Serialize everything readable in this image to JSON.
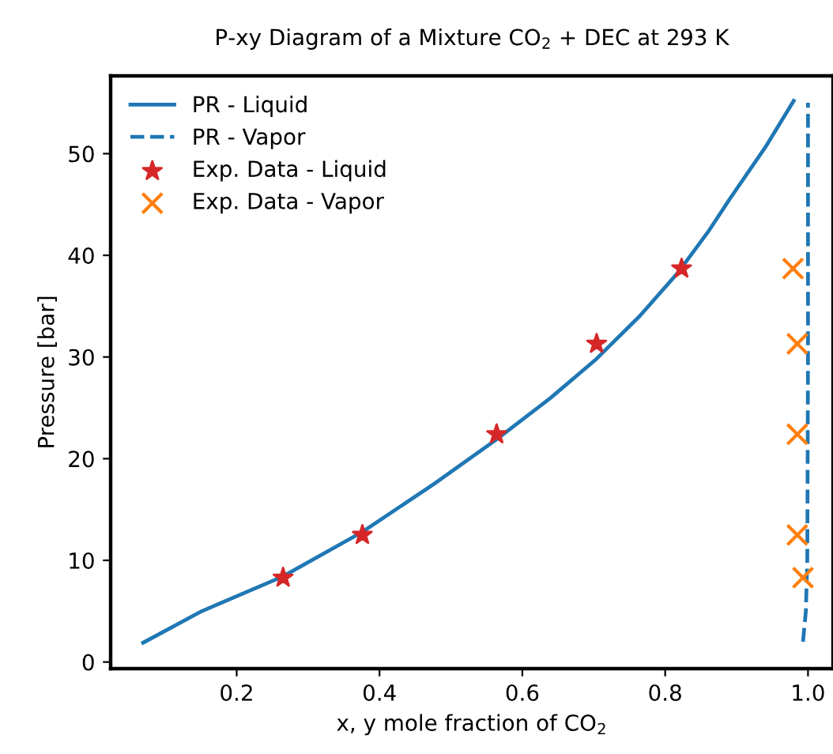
{
  "chart_data": {
    "type": "line",
    "title": "P-xy Diagram of a Mixture CO$_{2}$ + DEC at 293 K",
    "xlabel": "x, y mole fraction of CO$_{2}$",
    "ylabel": "Pressure [bar]",
    "xlim": [
      0.0235,
      1.035
    ],
    "ylim": [
      -0.65,
      57.65
    ],
    "xticks": [
      0.2,
      0.4,
      0.6,
      0.8,
      {
        "value": 1,
        "label": "1.0"
      }
    ],
    "yticks": [
      0,
      10,
      20,
      30,
      40,
      50
    ],
    "grid": false,
    "legend": "top left",
    "series": [
      {
        "name": "PR - Liquid",
        "color": "#1f77b4",
        "line_style": "solid",
        "marker": "none",
        "x": [
          0.069,
          0.151,
          0.264,
          0.376,
          0.476,
          0.564,
          0.64,
          0.702,
          0.764,
          0.818,
          0.86,
          0.891,
          0.94,
          0.98
        ],
        "values": [
          1.9,
          5.0,
          8.4,
          12.8,
          17.5,
          21.9,
          26.0,
          29.7,
          34.0,
          38.3,
          42.3,
          45.6,
          50.6,
          55.2
        ]
      },
      {
        "name": "PR - Vapor",
        "color": "#1f77b4",
        "line_style": "dashed",
        "marker": "none",
        "x": [
          0.993,
          0.997,
          0.999,
          1.0,
          1.0
        ],
        "values": [
          2,
          5,
          10,
          30,
          55
        ]
      },
      {
        "name": "Exp. Data - Liquid",
        "type": "scatter",
        "color": "#d62728",
        "marker": "star",
        "x": [
          0.265,
          0.376,
          0.564,
          0.704,
          0.823
        ],
        "values": [
          8.3,
          12.5,
          22.4,
          31.3,
          38.7
        ]
      },
      {
        "name": "Exp. Data - Vapor",
        "type": "scatter",
        "color": "#ff7f0e",
        "marker": "cross",
        "x": [
          0.993,
          0.985,
          0.985,
          0.985,
          0.979
        ],
        "values": [
          8.3,
          12.5,
          22.4,
          31.3,
          38.7
        ]
      }
    ]
  }
}
